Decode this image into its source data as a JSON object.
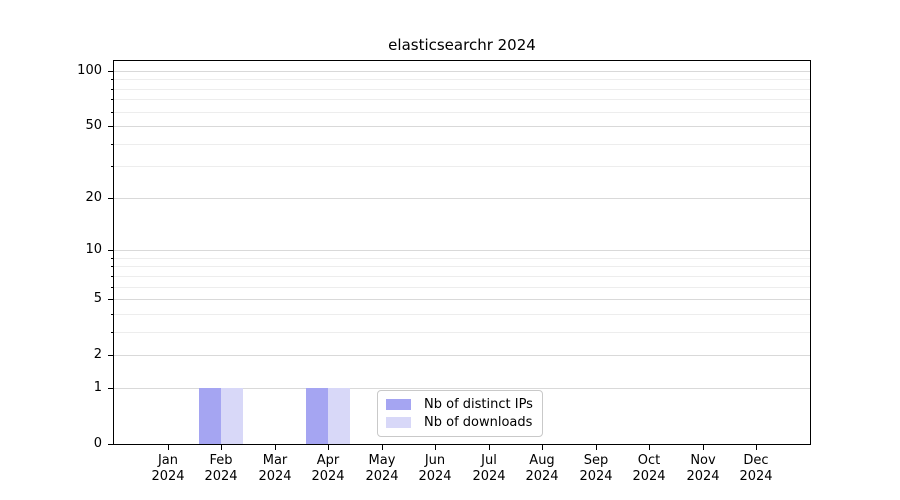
{
  "chart_data": {
    "type": "bar",
    "title": "elasticsearchr 2024",
    "categories": [
      "Jan",
      "Feb",
      "Mar",
      "Apr",
      "May",
      "Jun",
      "Jul",
      "Aug",
      "Sep",
      "Oct",
      "Nov",
      "Dec"
    ],
    "year_label": "2024",
    "series": [
      {
        "name": "Nb of distinct IPs",
        "color": "#a5a5f2",
        "values": [
          0,
          1,
          0,
          1,
          0,
          0,
          0,
          0,
          0,
          0,
          0,
          0
        ]
      },
      {
        "name": "Nb of downloads",
        "color": "#d8d8f8",
        "values": [
          0,
          1,
          0,
          1,
          0,
          0,
          0,
          0,
          0,
          0,
          0,
          0
        ]
      }
    ],
    "y_scale": "log1p",
    "y_major_ticks": [
      0,
      1,
      2,
      5,
      10,
      20,
      50,
      100
    ],
    "y_minor_ticks": [
      3,
      4,
      6,
      7,
      8,
      9,
      30,
      40,
      60,
      70,
      80,
      90
    ],
    "ylim": [
      0,
      113
    ],
    "grid": "horizontal",
    "legend_position": "lower-center-inside"
  }
}
